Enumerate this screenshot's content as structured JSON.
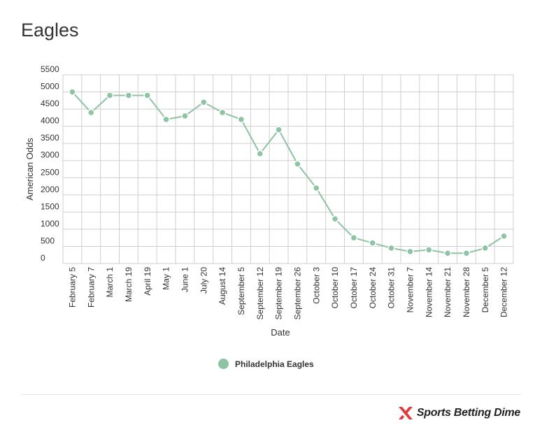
{
  "title": "Eagles",
  "legend": {
    "label": "Philadelphia Eagles",
    "color": "#8ec3a4"
  },
  "brand": {
    "text": "Sports Betting Dime",
    "icon": "sbd-x-logo-icon",
    "accent": "#e03a3e"
  },
  "chart_data": {
    "type": "line",
    "title": "Eagles",
    "xlabel": "Date",
    "ylabel": "American Odds",
    "ylim": [
      0,
      5500
    ],
    "yticks": [
      0,
      500,
      1000,
      1500,
      2000,
      2500,
      3000,
      3500,
      4000,
      4500,
      5000,
      5500
    ],
    "grid": true,
    "legend_position": "bottom",
    "categories": [
      "February 5",
      "February 7",
      "March 1",
      "March 19",
      "April 19",
      "May 1",
      "June 1",
      "July 20",
      "August 14",
      "September 5",
      "September 12",
      "September 19",
      "September 26",
      "October 3",
      "October 10",
      "October 17",
      "October 24",
      "October 31",
      "November 7",
      "November 14",
      "November 21",
      "November 28",
      "December 5",
      "December 12"
    ],
    "series": [
      {
        "name": "Philadelphia Eagles",
        "color": "#8ec3a4",
        "values": [
          5000,
          4400,
          4900,
          4900,
          4900,
          4200,
          4300,
          4700,
          4400,
          4200,
          3200,
          3900,
          2900,
          2200,
          1300,
          750,
          600,
          450,
          350,
          400,
          300,
          300,
          450,
          800
        ]
      }
    ]
  }
}
